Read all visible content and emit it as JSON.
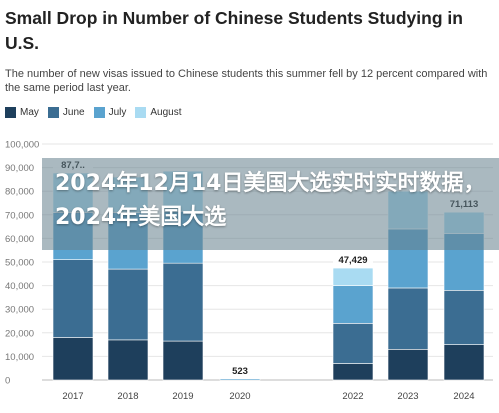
{
  "header": {
    "title": "Small Drop in Number of Chinese Students Studying in U.S.",
    "subtitle": "The number of new visas issued to Chinese students this summer fell by 12 percent compared with the same period last year."
  },
  "overlay": {
    "text": "2024年12月14日美国大选实时实时数据，2024年美国大选"
  },
  "colors": {
    "May": "#1e3f5c",
    "June": "#3b6d92",
    "July": "#5aa3cf",
    "August": "#a9dbf2",
    "grid": "#e6e6e6",
    "banner": "#64808c"
  },
  "chart_data": {
    "type": "bar",
    "stacked": true,
    "categories": [
      "2017",
      "2018",
      "2019",
      "2020",
      "2022",
      "2023",
      "2024"
    ],
    "series": [
      {
        "name": "May",
        "values": [
          18000,
          17000,
          16500,
          0,
          7000,
          13000,
          15000
        ]
      },
      {
        "name": "June",
        "values": [
          33000,
          30000,
          33000,
          0,
          17000,
          26000,
          23000
        ]
      },
      {
        "name": "July",
        "values": [
          20000,
          24000,
          22000,
          523,
          16000,
          25000,
          24000
        ]
      },
      {
        "name": "August",
        "values": [
          16700,
          15000,
          17000,
          0,
          7429,
          16000,
          9113
        ]
      }
    ],
    "data_labels": [
      "87,7..",
      "",
      "",
      "523",
      "47,429",
      "",
      "71,113"
    ],
    "y_ticks": [
      "0",
      "10,000",
      "20,000",
      "30,000",
      "40,000",
      "50,000",
      "60,000",
      "70,000",
      "80,000",
      "90,000",
      "100,000"
    ],
    "ylim": [
      0,
      100000
    ],
    "legend_position": "top-left",
    "grid": true
  }
}
